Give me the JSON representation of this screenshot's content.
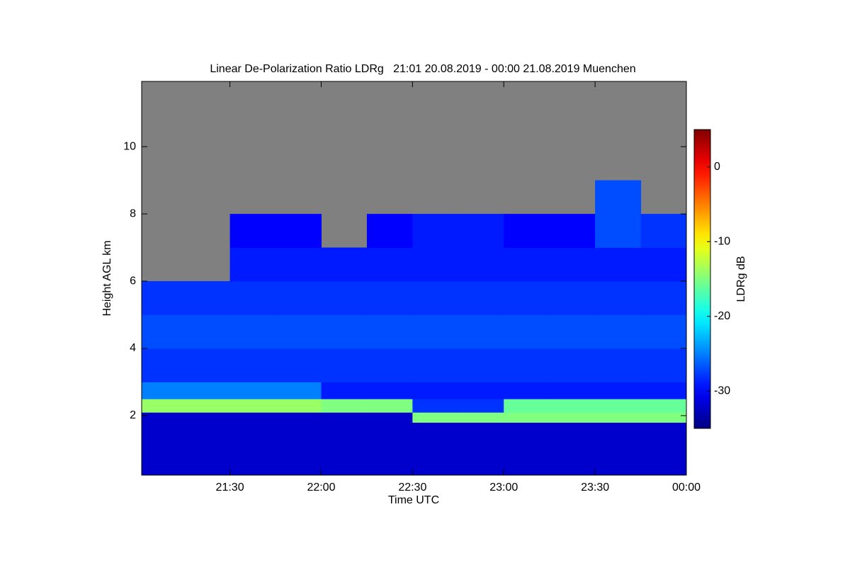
{
  "chart_data": {
    "type": "heatmap",
    "title": "Linear De-Polarization Ratio LDRg   21:01 20.08.2019 - 00:00 21.08.2019 Muenchen",
    "xlabel": "Time UTC",
    "ylabel": "Height AGL km",
    "xlim": [
      21.0167,
      24.0
    ],
    "xticks": [
      {
        "value": 21.5,
        "label": "21:30"
      },
      {
        "value": 22.0,
        "label": "22:00"
      },
      {
        "value": 22.5,
        "label": "22:30"
      },
      {
        "value": 23.0,
        "label": "23:00"
      },
      {
        "value": 23.5,
        "label": "23:30"
      },
      {
        "value": 24.0,
        "label": "00:00"
      }
    ],
    "ylim": [
      0.23,
      11.94
    ],
    "yticks": [
      2,
      4,
      6,
      8,
      10
    ],
    "background": "#808080",
    "colormap": "jet",
    "x_edges": [
      21.0167,
      21.25,
      21.5,
      21.75,
      22.0,
      22.25,
      22.5,
      22.75,
      23.0,
      23.25,
      23.5,
      23.75,
      24.0
    ],
    "y_edges": [
      0.23,
      1.0,
      1.8,
      2.1,
      2.5,
      3.0,
      4.0,
      5.0,
      6.0,
      7.0,
      8.0,
      9.0,
      11.94
    ],
    "z": [
      [
        -32,
        -32,
        -32,
        -32,
        -32,
        -32,
        -32,
        -32,
        -32,
        -32,
        -32,
        -32
      ],
      [
        -32,
        -32,
        -32,
        -32,
        -32,
        -32,
        -32,
        -32,
        -32,
        -32,
        -32,
        -32
      ],
      [
        -32,
        -32,
        -32,
        -32,
        -32,
        -32,
        -15,
        -15,
        -15,
        -15,
        -15,
        -15
      ],
      [
        -14,
        -14,
        -14,
        -14,
        -15,
        -15,
        -28,
        -28,
        -16,
        -16,
        -16,
        -16
      ],
      [
        -25,
        -25,
        -25,
        -25,
        -29,
        -29,
        -29,
        -29,
        -29,
        -29,
        -29,
        -29
      ],
      [
        -28,
        -28,
        -28,
        -28,
        -28,
        -28,
        -28,
        -28,
        -28,
        -28,
        -28,
        -28
      ],
      [
        -27,
        -27,
        -27,
        -27,
        -27,
        -27,
        -27,
        -27,
        -27,
        -27,
        -27,
        -27
      ],
      [
        -28,
        -28,
        -28,
        -28,
        -28,
        -28,
        -28,
        -28,
        -28,
        -28,
        -28,
        -28
      ],
      [
        null,
        null,
        -29,
        -29,
        -29,
        -29,
        -29,
        -29,
        -29,
        -29,
        -29,
        -29
      ],
      [
        null,
        null,
        -30,
        -30,
        null,
        -30,
        -29,
        -29,
        -30,
        -30,
        -27,
        -28
      ],
      [
        null,
        null,
        null,
        null,
        null,
        null,
        null,
        null,
        null,
        null,
        -27,
        null
      ],
      [
        null,
        null,
        null,
        null,
        null,
        null,
        null,
        null,
        null,
        null,
        null,
        null
      ]
    ],
    "colorbar": {
      "label": "LDRg dB",
      "lim": [
        -35,
        5
      ],
      "ticks": [
        -30,
        -20,
        -10,
        0
      ]
    }
  }
}
